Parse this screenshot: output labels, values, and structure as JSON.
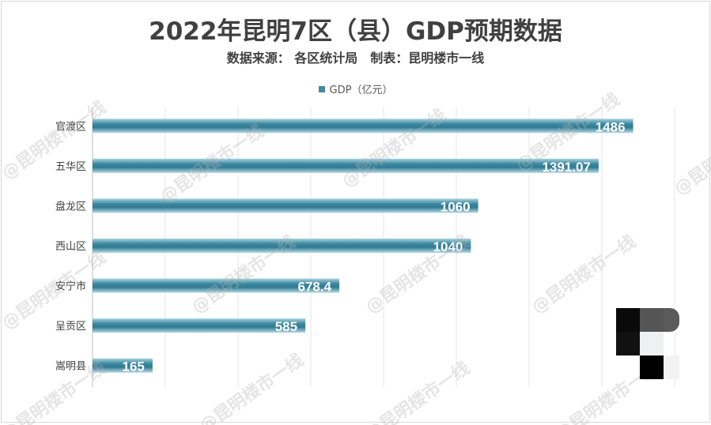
{
  "chart_data": {
    "type": "bar",
    "orientation": "horizontal",
    "title": "2022年昆明7区（县）GDP预期数据",
    "subtitle": "数据来源： 各区统计局　制表：昆明楼市一线",
    "categories": [
      "官渡区",
      "五华区",
      "盘龙区",
      "西山区",
      "安宁市",
      "呈贡区",
      "嵩明县"
    ],
    "series": [
      {
        "name": "GDP（亿元）",
        "values": [
          1486,
          1391.07,
          1060,
          1040,
          678.4,
          585,
          165
        ],
        "labels": [
          "1486",
          "1391.07",
          "1060",
          "1040",
          "678.4",
          "585",
          "165"
        ]
      }
    ],
    "xlim": [
      0,
      1600
    ],
    "grid_step": 200,
    "grid": true,
    "legend": "top",
    "bar_color": "#3f8ba3",
    "label_color": "#ffffff"
  },
  "watermark": "@昆明楼市一线"
}
